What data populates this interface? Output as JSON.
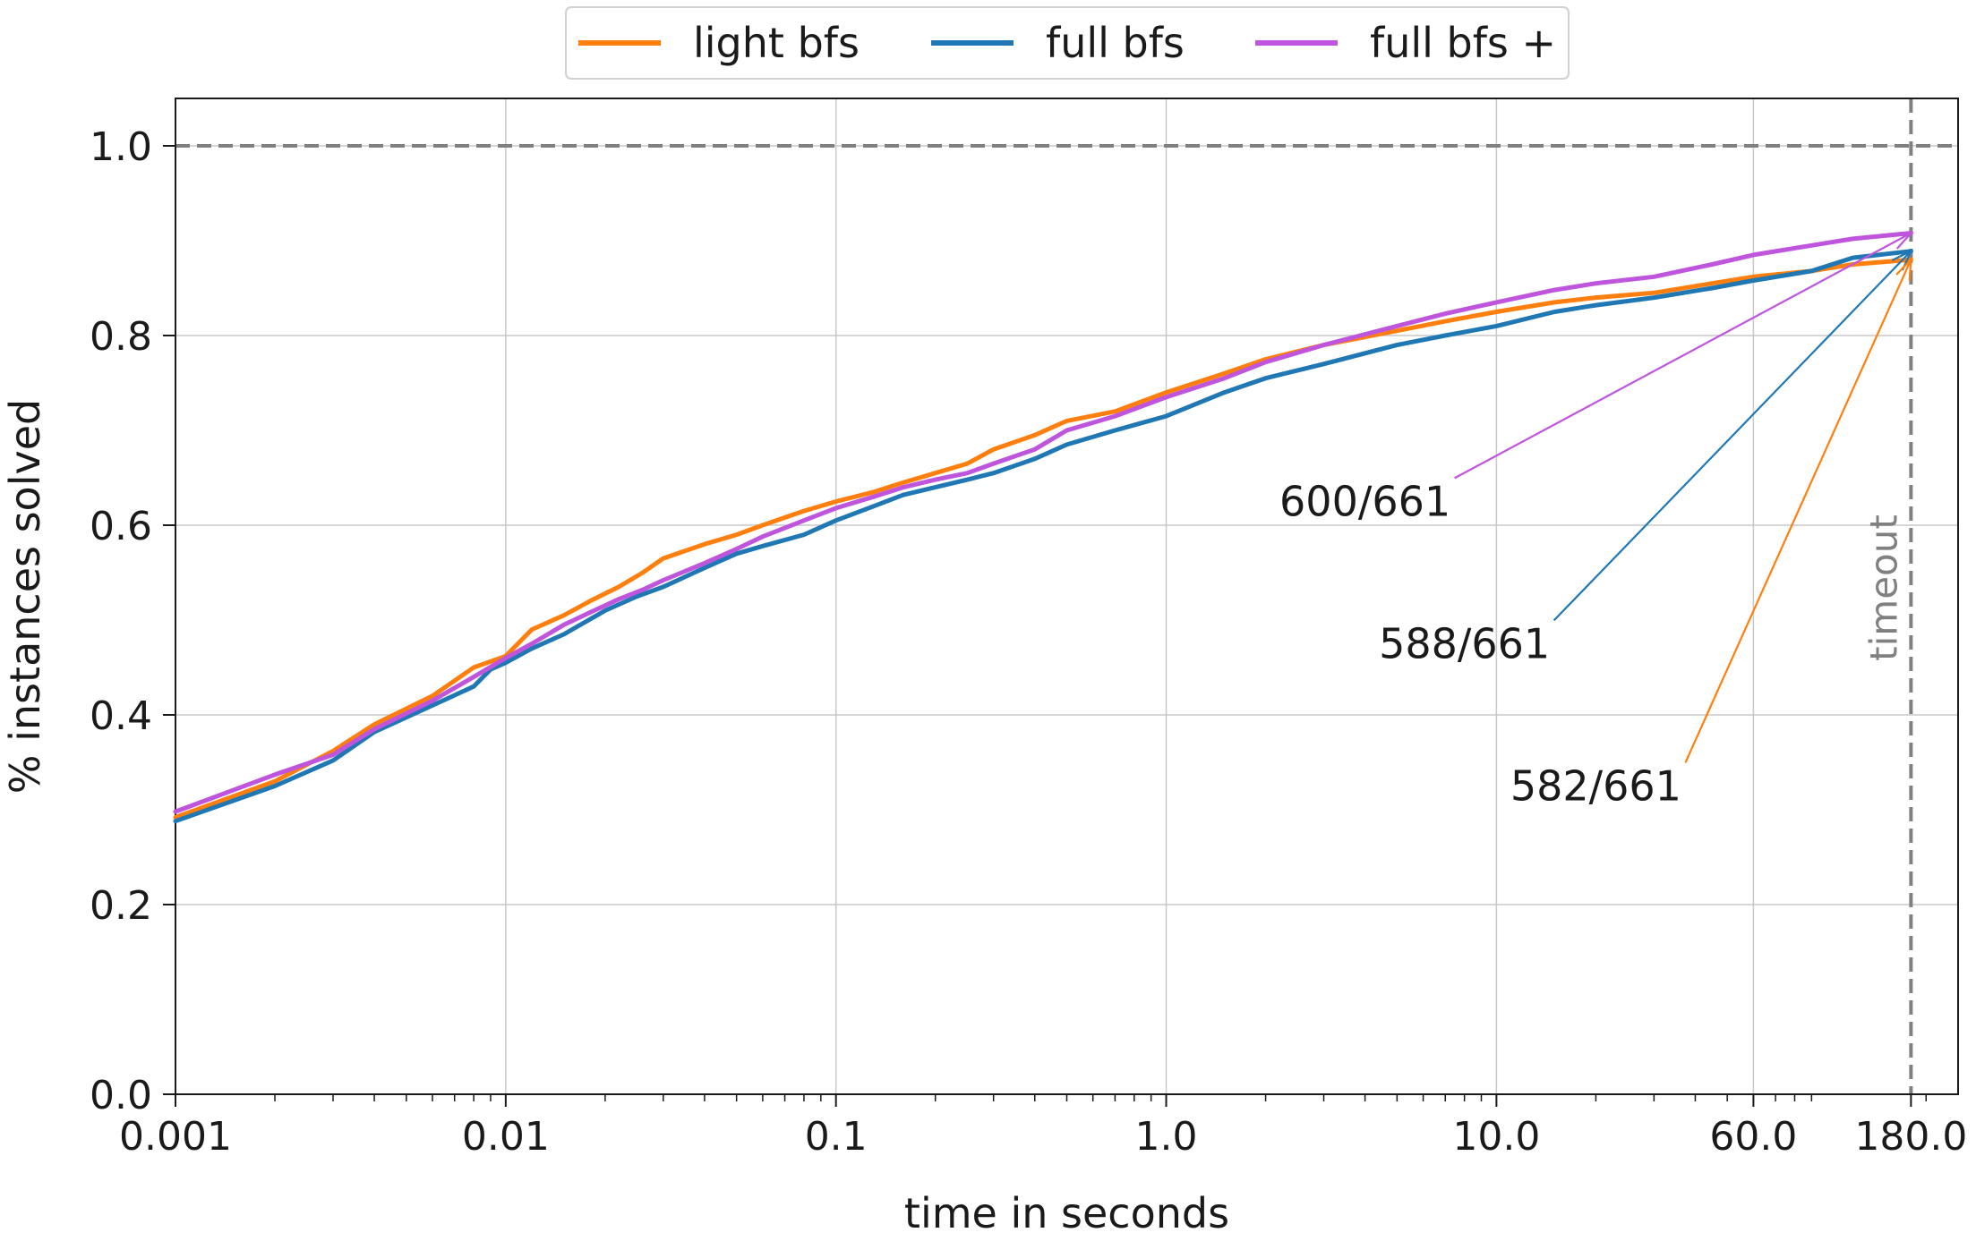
{
  "chart_data": {
    "type": "line",
    "xlabel": "time in seconds",
    "ylabel": "% instances solved",
    "xscale": "log",
    "xlim": [
      0.001,
      250
    ],
    "ylim": [
      0,
      1.05
    ],
    "x_ticks": [
      {
        "value": 0.001,
        "label": "0.001"
      },
      {
        "value": 0.01,
        "label": "0.01"
      },
      {
        "value": 0.1,
        "label": "0.1"
      },
      {
        "value": 1,
        "label": "1.0"
      },
      {
        "value": 10,
        "label": "10.0"
      },
      {
        "value": 60,
        "label": "60.0"
      },
      {
        "value": 180,
        "label": "180.0"
      }
    ],
    "y_ticks": [
      {
        "value": 0.0,
        "label": "0.0"
      },
      {
        "value": 0.2,
        "label": "0.2"
      },
      {
        "value": 0.4,
        "label": "0.4"
      },
      {
        "value": 0.6,
        "label": "0.6"
      },
      {
        "value": 0.8,
        "label": "0.8"
      },
      {
        "value": 1.0,
        "label": "1.0"
      }
    ],
    "grid": true,
    "legend_position": "top-center",
    "reference_line_y": 1.0,
    "timeout_x": 180,
    "timeout_label": "timeout",
    "series": [
      {
        "name": "light bfs",
        "color": "#ff7f0e",
        "points": [
          [
            0.001,
            0.292
          ],
          [
            0.002,
            0.33
          ],
          [
            0.003,
            0.362
          ],
          [
            0.004,
            0.39
          ],
          [
            0.006,
            0.42
          ],
          [
            0.008,
            0.45
          ],
          [
            0.01,
            0.462
          ],
          [
            0.012,
            0.49
          ],
          [
            0.015,
            0.505
          ],
          [
            0.018,
            0.52
          ],
          [
            0.022,
            0.535
          ],
          [
            0.026,
            0.55
          ],
          [
            0.03,
            0.565
          ],
          [
            0.04,
            0.58
          ],
          [
            0.05,
            0.59
          ],
          [
            0.06,
            0.6
          ],
          [
            0.08,
            0.615
          ],
          [
            0.1,
            0.625
          ],
          [
            0.13,
            0.635
          ],
          [
            0.16,
            0.645
          ],
          [
            0.2,
            0.655
          ],
          [
            0.25,
            0.665
          ],
          [
            0.3,
            0.68
          ],
          [
            0.4,
            0.695
          ],
          [
            0.5,
            0.71
          ],
          [
            0.7,
            0.72
          ],
          [
            1.0,
            0.74
          ],
          [
            1.5,
            0.76
          ],
          [
            2.0,
            0.775
          ],
          [
            3.0,
            0.79
          ],
          [
            5.0,
            0.805
          ],
          [
            7.0,
            0.815
          ],
          [
            10.0,
            0.825
          ],
          [
            15.0,
            0.835
          ],
          [
            20.0,
            0.84
          ],
          [
            30.0,
            0.845
          ],
          [
            45.0,
            0.855
          ],
          [
            60.0,
            0.862
          ],
          [
            90.0,
            0.868
          ],
          [
            120.0,
            0.875
          ],
          [
            180.0,
            0.88
          ]
        ]
      },
      {
        "name": "full bfs",
        "color": "#1f77b4",
        "points": [
          [
            0.001,
            0.288
          ],
          [
            0.002,
            0.325
          ],
          [
            0.003,
            0.352
          ],
          [
            0.004,
            0.382
          ],
          [
            0.006,
            0.41
          ],
          [
            0.008,
            0.43
          ],
          [
            0.009,
            0.448
          ],
          [
            0.01,
            0.455
          ],
          [
            0.012,
            0.47
          ],
          [
            0.015,
            0.485
          ],
          [
            0.02,
            0.51
          ],
          [
            0.025,
            0.525
          ],
          [
            0.03,
            0.535
          ],
          [
            0.04,
            0.555
          ],
          [
            0.05,
            0.57
          ],
          [
            0.06,
            0.578
          ],
          [
            0.08,
            0.59
          ],
          [
            0.1,
            0.605
          ],
          [
            0.13,
            0.62
          ],
          [
            0.16,
            0.632
          ],
          [
            0.2,
            0.64
          ],
          [
            0.25,
            0.648
          ],
          [
            0.3,
            0.655
          ],
          [
            0.4,
            0.67
          ],
          [
            0.5,
            0.685
          ],
          [
            0.7,
            0.7
          ],
          [
            1.0,
            0.715
          ],
          [
            1.5,
            0.74
          ],
          [
            2.0,
            0.755
          ],
          [
            3.0,
            0.77
          ],
          [
            5.0,
            0.79
          ],
          [
            7.0,
            0.8
          ],
          [
            10.0,
            0.81
          ],
          [
            15.0,
            0.825
          ],
          [
            20.0,
            0.832
          ],
          [
            30.0,
            0.84
          ],
          [
            45.0,
            0.85
          ],
          [
            60.0,
            0.858
          ],
          [
            90.0,
            0.868
          ],
          [
            120.0,
            0.882
          ],
          [
            180.0,
            0.889
          ]
        ]
      },
      {
        "name": "full bfs +",
        "color": "#bf55dc",
        "points": [
          [
            0.001,
            0.298
          ],
          [
            0.002,
            0.337
          ],
          [
            0.003,
            0.358
          ],
          [
            0.004,
            0.385
          ],
          [
            0.006,
            0.415
          ],
          [
            0.008,
            0.44
          ],
          [
            0.01,
            0.46
          ],
          [
            0.012,
            0.475
          ],
          [
            0.015,
            0.495
          ],
          [
            0.018,
            0.508
          ],
          [
            0.022,
            0.522
          ],
          [
            0.026,
            0.532
          ],
          [
            0.03,
            0.542
          ],
          [
            0.04,
            0.56
          ],
          [
            0.05,
            0.575
          ],
          [
            0.06,
            0.588
          ],
          [
            0.08,
            0.605
          ],
          [
            0.1,
            0.618
          ],
          [
            0.13,
            0.63
          ],
          [
            0.16,
            0.64
          ],
          [
            0.2,
            0.648
          ],
          [
            0.25,
            0.655
          ],
          [
            0.3,
            0.665
          ],
          [
            0.4,
            0.68
          ],
          [
            0.5,
            0.7
          ],
          [
            0.7,
            0.715
          ],
          [
            1.0,
            0.735
          ],
          [
            1.5,
            0.755
          ],
          [
            2.0,
            0.772
          ],
          [
            3.0,
            0.79
          ],
          [
            5.0,
            0.81
          ],
          [
            7.0,
            0.823
          ],
          [
            10.0,
            0.835
          ],
          [
            15.0,
            0.848
          ],
          [
            20.0,
            0.855
          ],
          [
            30.0,
            0.862
          ],
          [
            45.0,
            0.875
          ],
          [
            60.0,
            0.885
          ],
          [
            90.0,
            0.895
          ],
          [
            120.0,
            0.902
          ],
          [
            180.0,
            0.908
          ]
        ]
      }
    ],
    "annotations": [
      {
        "text": "600/661",
        "series": "full bfs +",
        "color": "#bf55dc",
        "text_x": 4.0,
        "text_y": 0.61,
        "arrow_to_x": 180.0,
        "arrow_to_y": 0.908
      },
      {
        "text": "588/661",
        "series": "full bfs",
        "color": "#1f77b4",
        "text_x": 8.0,
        "text_y": 0.46,
        "arrow_to_x": 180.0,
        "arrow_to_y": 0.889
      },
      {
        "text": "582/661",
        "series": "light bfs",
        "color": "#ff7f0e",
        "text_x": 20.0,
        "text_y": 0.31,
        "arrow_to_x": 180.0,
        "arrow_to_y": 0.88
      }
    ]
  }
}
